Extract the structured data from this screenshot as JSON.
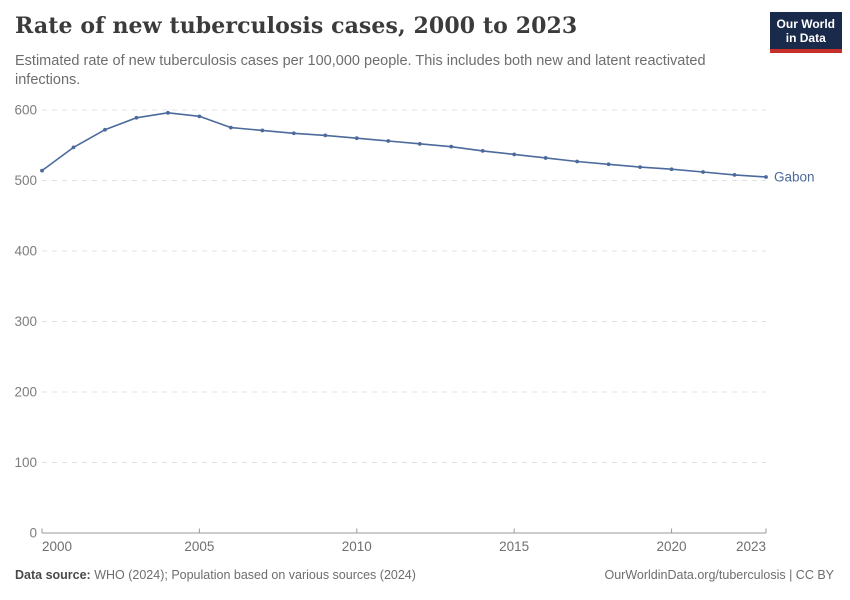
{
  "header": {
    "title": "Rate of new tuberculosis cases, 2000 to 2023",
    "subtitle": "Estimated rate of new tuberculosis cases per 100,000 people. This includes both new and latent reactivated infections."
  },
  "logo": {
    "line1": "Our World",
    "line2": "in Data",
    "bg_color": "#192a4b",
    "bar_color": "#c5302a"
  },
  "chart_data": {
    "type": "line",
    "title": "Rate of new tuberculosis cases, 2000 to 2023",
    "xlabel": "",
    "ylabel": "",
    "x": [
      2000,
      2001,
      2002,
      2003,
      2004,
      2005,
      2006,
      2007,
      2008,
      2009,
      2010,
      2011,
      2012,
      2013,
      2014,
      2015,
      2016,
      2017,
      2018,
      2019,
      2020,
      2021,
      2022,
      2023
    ],
    "series": [
      {
        "name": "Gabon",
        "color": "#4c6a9c",
        "values": [
          514,
          547,
          572,
          589,
          596,
          591,
          575,
          571,
          567,
          564,
          560,
          556,
          552,
          548,
          542,
          537,
          532,
          527,
          523,
          519,
          516,
          512,
          508,
          505
        ]
      }
    ],
    "xlim": [
      2000,
      2023
    ],
    "ylim": [
      0,
      600
    ],
    "yticks": [
      0,
      100,
      200,
      300,
      400,
      500,
      600
    ],
    "xticks": [
      2000,
      2005,
      2010,
      2015,
      2020,
      2023
    ],
    "grid": "horizontal-dashed",
    "legend_position": "end-of-line-label",
    "marker": "dot"
  },
  "footer": {
    "data_source_label": "Data source:",
    "data_source_text": "WHO (2024); Population based on various sources (2024)",
    "right_text": "OurWorldinData.org/tuberculosis | CC BY"
  },
  "colors": {
    "series_blue": "#4c6a9c",
    "grid": "#e0e0e0",
    "axis": "#9a9a9a",
    "tick_label": "#7d7d7d",
    "title_text": "#3b3b3b",
    "subtitle_text": "#6d6d6d"
  }
}
